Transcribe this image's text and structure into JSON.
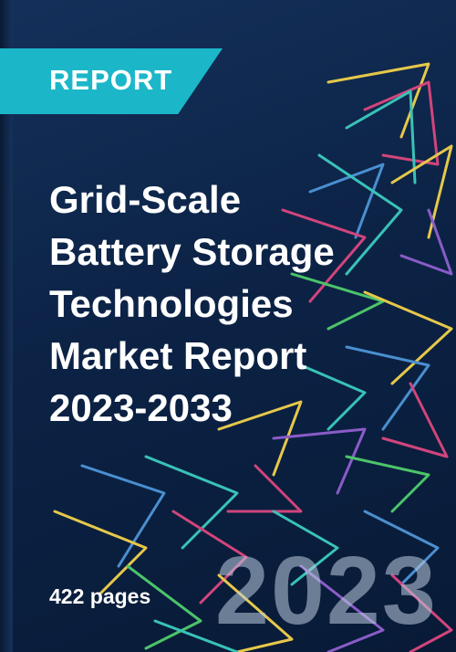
{
  "badge": {
    "label": "REPORT"
  },
  "title": {
    "lines": [
      "Grid-Scale",
      "Battery Storage",
      "Technologies",
      "Market Report",
      "2023-2033"
    ]
  },
  "pages": {
    "label": "422 pages"
  },
  "year_watermark": {
    "label": "2023"
  },
  "colors": {
    "background": "#0c2346",
    "badge": "#1bb7c9",
    "text": "#ffffff",
    "line_yellow": "#e6c84a",
    "line_pink": "#d1457c",
    "line_teal": "#39c2b8",
    "line_blue": "#4a8fd0",
    "line_purple": "#8a5cc8",
    "line_green": "#4cc46a"
  }
}
